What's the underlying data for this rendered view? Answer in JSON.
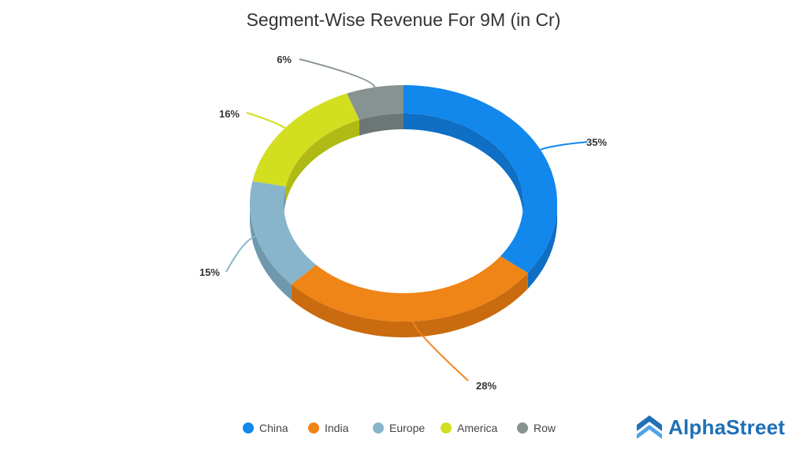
{
  "chart_data": {
    "type": "pie",
    "title": "Segment-Wise Revenue For 9M (in Cr)",
    "categories": [
      "China",
      "India",
      "Europe",
      "America",
      "Row"
    ],
    "values": [
      35,
      28,
      15,
      16,
      6
    ],
    "labels": [
      "35%",
      "28%",
      "15%",
      "16%",
      "6%"
    ],
    "colors": [
      "#1287ec",
      "#ef8417",
      "#88b5cb",
      "#d3de21",
      "#879390"
    ],
    "side_colors": [
      "#0e6fc4",
      "#c96b0e",
      "#6f98ad",
      "#afba14",
      "#6c7775"
    ],
    "legend_position": "bottom"
  },
  "branding": {
    "name": "AlphaStreet",
    "logo_icon": "alphastreet-chevron-logo-icon",
    "color": "#1f6fb6"
  }
}
